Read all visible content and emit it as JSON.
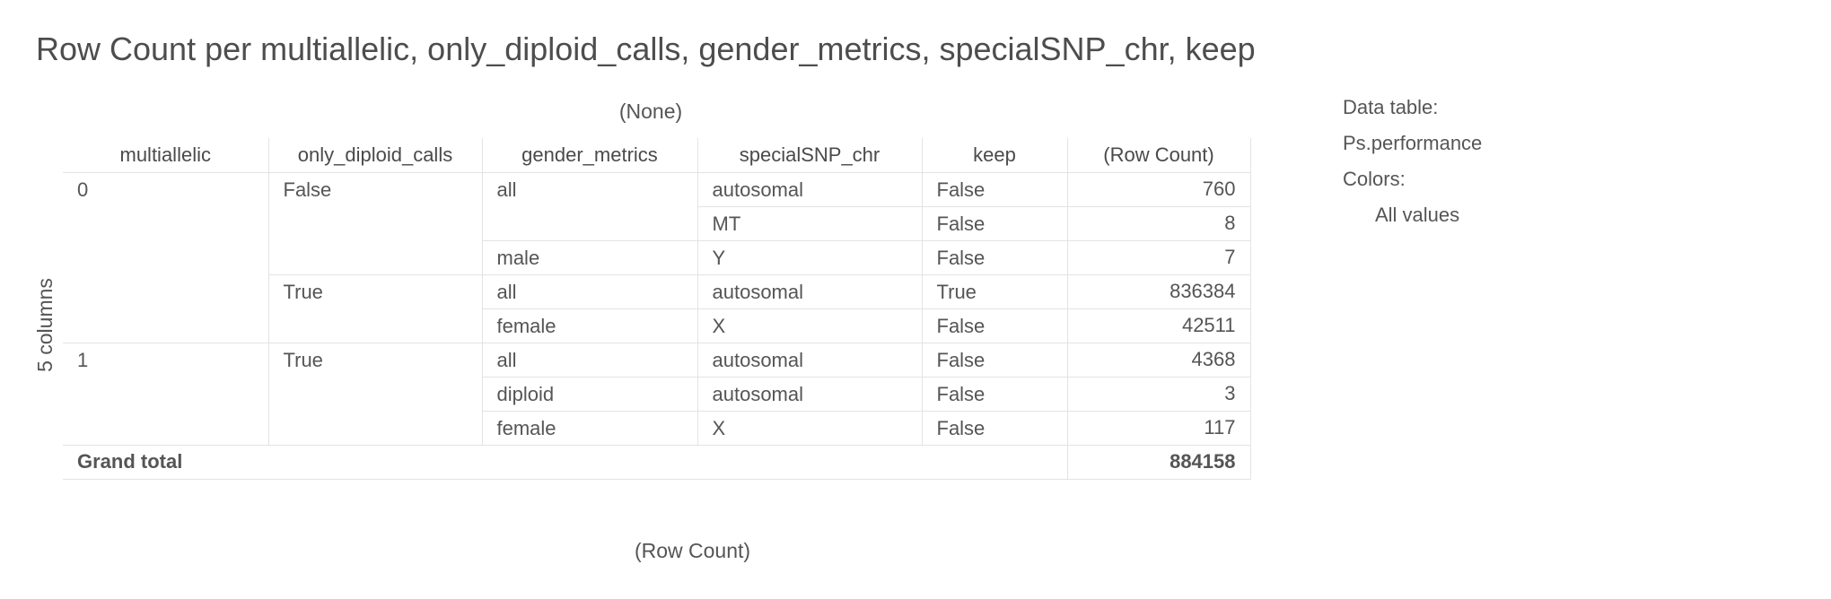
{
  "title": "Row Count per multiallelic, only_diploid_calls, gender_metrics, specialSNP_chr, keep",
  "column_axis_label": "(None)",
  "row_axis_label": "5 columns",
  "value_axis_label": "(Row Count)",
  "table": {
    "headers": [
      "multiallelic",
      "only_diploid_calls",
      "gender_metrics",
      "specialSNP_chr",
      "keep",
      "(Row Count)"
    ],
    "rows": [
      [
        "0",
        "False",
        "all",
        "autosomal",
        "False",
        "760"
      ],
      [
        "",
        "",
        "",
        "MT",
        "False",
        "8"
      ],
      [
        "",
        "",
        "male",
        "Y",
        "False",
        "7"
      ],
      [
        "",
        "True",
        "all",
        "autosomal",
        "True",
        "836384"
      ],
      [
        "",
        "",
        "female",
        "X",
        "False",
        "42511"
      ],
      [
        "1",
        "True",
        "all",
        "autosomal",
        "False",
        "4368"
      ],
      [
        "",
        "",
        "diploid",
        "autosomal",
        "False",
        "3"
      ],
      [
        "",
        "",
        "female",
        "X",
        "False",
        "117"
      ]
    ],
    "grand_total_label": "Grand total",
    "grand_total_value": "884158"
  },
  "side_panel": {
    "data_table_label": "Data table:",
    "data_table_value": "Ps.performance",
    "colors_label": "Colors:",
    "colors_value": "All values"
  }
}
